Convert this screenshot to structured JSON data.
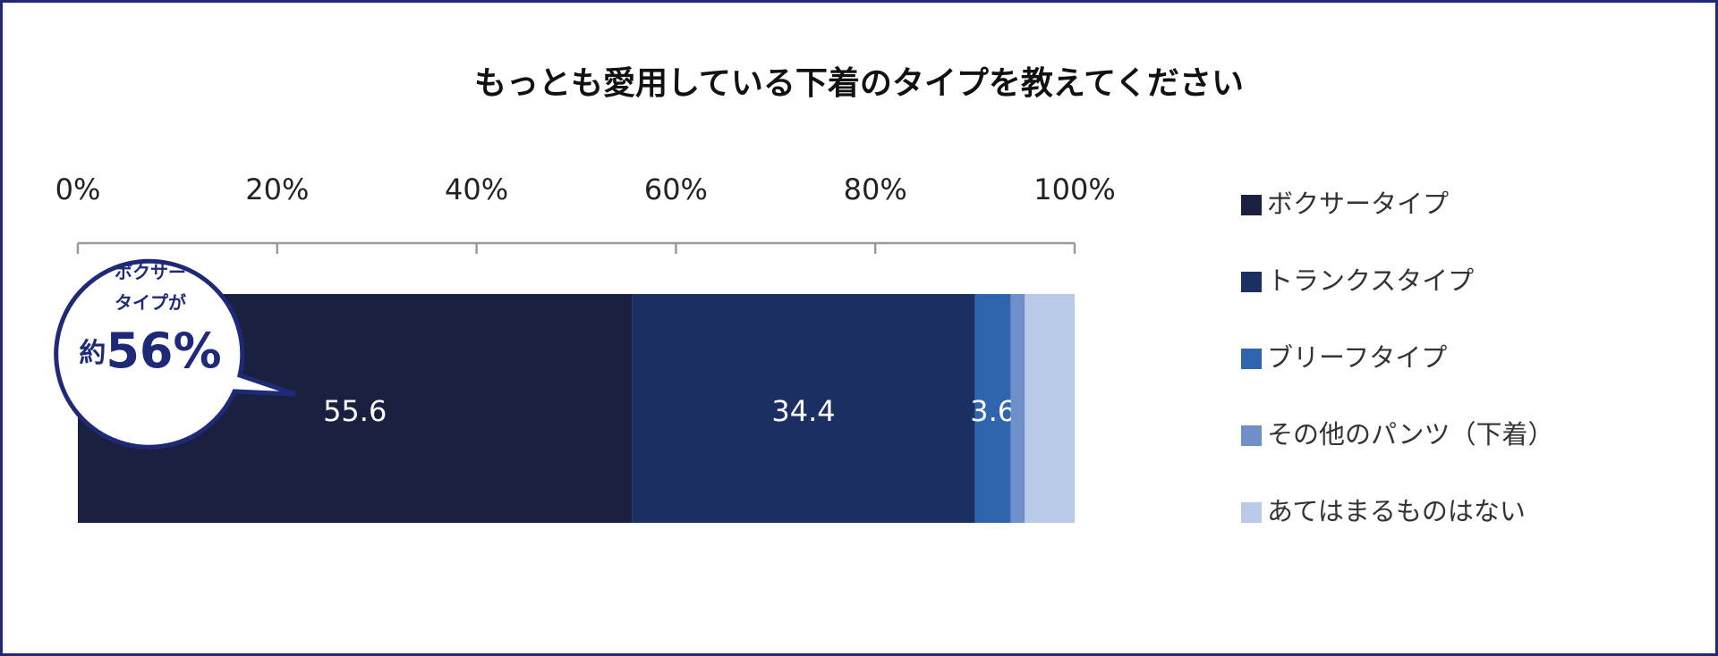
{
  "chart_data": {
    "type": "stacked-bar-horizontal",
    "title": "もっとも愛用している下着のタイプを教えてください",
    "xlim": [
      0,
      100
    ],
    "xticks": [
      {
        "value": 0,
        "label": "0%"
      },
      {
        "value": 20,
        "label": "20%"
      },
      {
        "value": 40,
        "label": "40%"
      },
      {
        "value": 60,
        "label": "60%"
      },
      {
        "value": 80,
        "label": "80%"
      },
      {
        "value": 100,
        "label": "100%"
      }
    ],
    "series": [
      {
        "name": "ボクサータイプ",
        "color": "#1a2140",
        "values": [
          55.6
        ],
        "value_labels": [
          "55.6"
        ]
      },
      {
        "name": "トランクスタイプ",
        "color": "#1c2f62",
        "values": [
          34.4
        ],
        "value_labels": [
          "34.4"
        ]
      },
      {
        "name": "ブリーフタイプ",
        "color": "#2f64ae",
        "values": [
          3.6
        ],
        "value_labels": [
          "3.6"
        ]
      },
      {
        "name": "その他のパンツ（下着）",
        "color": "#6f8fca",
        "values": [
          1.4
        ]
      },
      {
        "name": "あてはまるものはない",
        "color": "#b9c9e8",
        "values": [
          5.0
        ]
      }
    ],
    "legend": "right",
    "annotation": {
      "lines": [
        "ボクサー",
        "タイプが"
      ],
      "prefix": "約",
      "value": "56%"
    }
  }
}
